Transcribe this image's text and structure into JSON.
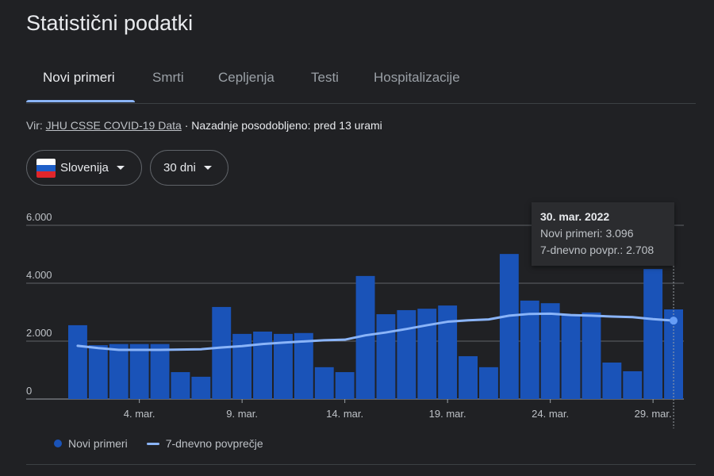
{
  "title": "Statistični podatki",
  "tabs": [
    {
      "label": "Novi primeri",
      "active": true
    },
    {
      "label": "Smrti"
    },
    {
      "label": "Cepljenja"
    },
    {
      "label": "Testi"
    },
    {
      "label": "Hospitalizacije"
    }
  ],
  "source": {
    "prefix": "Vir: ",
    "link": "JHU CSSE COVID-19 Data",
    "updated": " · Nazadnje posodobljeno: pred 13 urami"
  },
  "filters": {
    "country": "Slovenija",
    "range": "30 dni"
  },
  "tooltip": {
    "date": "30. mar. 2022",
    "cases": "Novi primeri: 3.096",
    "avg": "7-dnevno povpr.: 2.708"
  },
  "legend": {
    "cases": "Novi primeri",
    "avg": "7-dnevno povprečje"
  },
  "colors": {
    "bar": "#1a53b8",
    "line": "#8ab4f8",
    "grid": "#5f6368"
  },
  "chart_data": {
    "type": "bar",
    "title": "Novi primeri",
    "x": [
      "1. mar.",
      "2. mar.",
      "3. mar.",
      "4. mar.",
      "5. mar.",
      "6. mar.",
      "7. mar.",
      "8. mar.",
      "9. mar.",
      "10. mar.",
      "11. mar.",
      "12. mar.",
      "13. mar.",
      "14. mar.",
      "15. mar.",
      "16. mar.",
      "17. mar.",
      "18. mar.",
      "19. mar.",
      "20. mar.",
      "21. mar.",
      "22. mar.",
      "23. mar.",
      "24. mar.",
      "25. mar.",
      "26. mar.",
      "27. mar.",
      "28. mar.",
      "29. mar.",
      "30. mar."
    ],
    "xticks": [
      "4. mar.",
      "9. mar.",
      "14. mar.",
      "19. mar.",
      "24. mar.",
      "29. mar."
    ],
    "yticks": [
      "0",
      "2.000",
      "4.000",
      "6.000"
    ],
    "ylim": [
      0,
      6000
    ],
    "series": [
      {
        "name": "Novi primeri",
        "type": "bar",
        "values": [
          2550,
          1860,
          1900,
          1900,
          1900,
          930,
          770,
          3180,
          2250,
          2330,
          2250,
          2280,
          1100,
          930,
          4250,
          2930,
          3070,
          3120,
          3230,
          1480,
          1100,
          5010,
          3400,
          3310,
          2900,
          2990,
          1260,
          960,
          4490,
          3096
        ]
      },
      {
        "name": "7-dnevno povprečje",
        "type": "line",
        "values": [
          1840,
          1760,
          1700,
          1700,
          1700,
          1710,
          1720,
          1780,
          1830,
          1900,
          1950,
          1990,
          2030,
          2050,
          2200,
          2300,
          2420,
          2550,
          2670,
          2720,
          2750,
          2880,
          2940,
          2950,
          2900,
          2880,
          2850,
          2830,
          2760,
          2708
        ]
      }
    ],
    "highlight_index": 29,
    "grid": true,
    "legend_position": "bottom-left"
  }
}
